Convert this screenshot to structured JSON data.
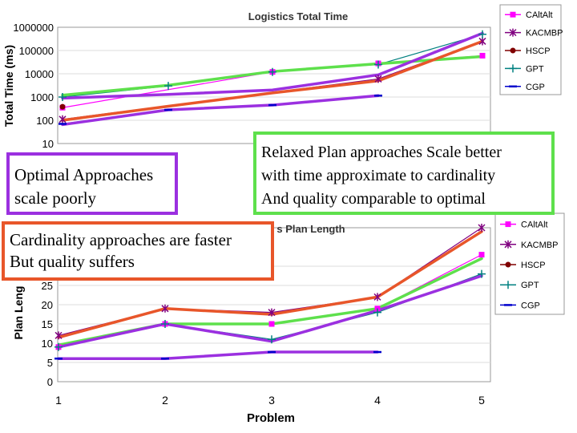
{
  "chart_data": [
    {
      "type": "line",
      "title": "Logistics Total Time",
      "ylabel": "Total Time (ms)",
      "xlabel": "",
      "yscale": "log",
      "ylim": [
        10,
        1000000
      ],
      "categories": [
        1,
        2,
        3,
        4,
        5
      ],
      "y_ticks": [
        "1000000",
        "100000",
        "10000",
        "1000",
        "100",
        "10"
      ],
      "legend_position": "top-right",
      "series": [
        {
          "name": "CAltAlt",
          "color": "#ff00ff",
          "marker": "square",
          "values": [
            350,
            null,
            12000,
            28000,
            60000
          ]
        },
        {
          "name": "KACMBP",
          "color": "#800080",
          "marker": "star",
          "values": [
            110,
            null,
            null,
            6000,
            250000
          ]
        },
        {
          "name": "HSCP",
          "color": "#800000",
          "marker": "circle",
          "values": [
            380,
            null,
            null,
            null,
            null
          ]
        },
        {
          "name": "GPT",
          "color": "#008080",
          "marker": "plus",
          "values": [
            1000,
            3000,
            12000,
            25000,
            500000
          ]
        },
        {
          "name": "CGP",
          "color": "#0000cc",
          "marker": "dash",
          "values": [
            70,
            280,
            450,
            1150,
            null
          ]
        }
      ],
      "highlights": [
        {
          "color": "#5ee04c",
          "values": [
            1200,
            3200,
            12500,
            27000,
            55000
          ]
        },
        {
          "color": "#9b30e0",
          "values": [
            900,
            1300,
            2000,
            9000,
            550000
          ]
        },
        {
          "color": "#e8562a",
          "values": [
            100,
            400,
            1500,
            5000,
            250000
          ]
        },
        {
          "color": "#9b30e0",
          "values": [
            65,
            280,
            450,
            1150,
            null
          ]
        }
      ]
    },
    {
      "type": "line",
      "title": "s Plan Length",
      "ylabel": "Plan Leng",
      "xlabel": "Problem",
      "ylim": [
        0,
        40
      ],
      "categories": [
        1,
        2,
        3,
        4,
        5
      ],
      "y_ticks": [
        30,
        25,
        20,
        15,
        10,
        5,
        0
      ],
      "legend_position": "top-right",
      "series": [
        {
          "name": "CAltAlt",
          "color": "#ff00ff",
          "marker": "square",
          "values": [
            9,
            15,
            15,
            19,
            33
          ]
        },
        {
          "name": "KACMBP",
          "color": "#800080",
          "marker": "star",
          "values": [
            12,
            19,
            18,
            22,
            40
          ]
        },
        {
          "name": "HSCP",
          "color": "#800000",
          "marker": "circle",
          "values": [
            null,
            null,
            null,
            null,
            null
          ]
        },
        {
          "name": "GPT",
          "color": "#008080",
          "marker": "plus",
          "values": [
            9,
            15,
            11,
            18,
            28
          ]
        },
        {
          "name": "CGP",
          "color": "#0000cc",
          "marker": "dash",
          "values": [
            6,
            6,
            7.7,
            7.7,
            null
          ]
        }
      ],
      "highlights": [
        {
          "color": "#e8562a",
          "values": [
            11.5,
            19,
            17.5,
            22,
            39
          ]
        },
        {
          "color": "#5ee04c",
          "values": [
            9.5,
            15,
            15,
            19,
            32
          ]
        },
        {
          "color": "#9b30e0",
          "values": [
            9,
            15,
            10.5,
            18.5,
            27.5
          ]
        },
        {
          "color": "#9b30e0",
          "values": [
            6,
            6,
            7.7,
            7.7,
            null
          ]
        }
      ]
    }
  ],
  "callouts": {
    "optimal": [
      "Optimal Approaches",
      "scale poorly"
    ],
    "relaxed": [
      "Relaxed Plan approaches Scale better",
      " with time approximate to cardinality",
      "And quality comparable to optimal"
    ],
    "cardinality": [
      "Cardinality approaches are faster",
      "But quality suffers"
    ]
  },
  "colors": {
    "callout_optimal_border": "#9b30e0",
    "callout_relaxed_border": "#5ee04c",
    "callout_cardinality_border": "#e8562a"
  }
}
